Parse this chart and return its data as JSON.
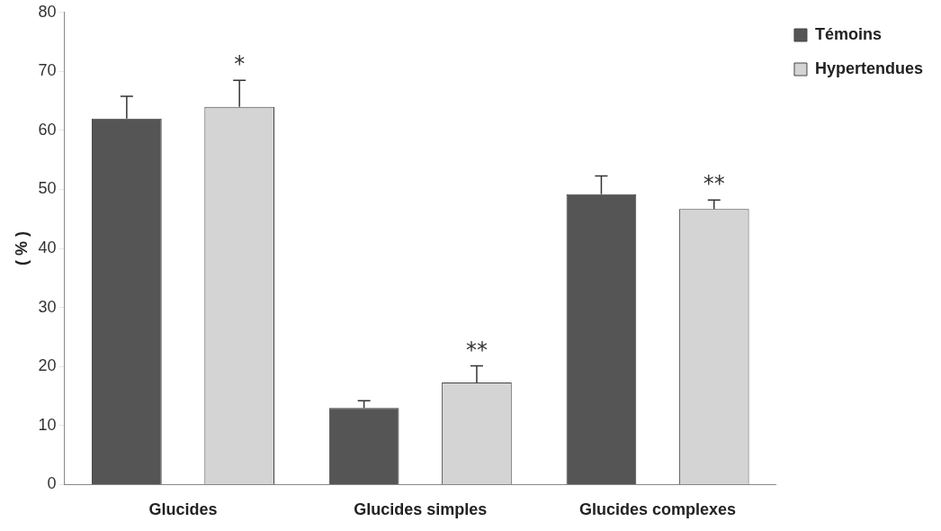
{
  "chart_data": {
    "type": "bar",
    "ylabel": "( % )",
    "categories": [
      "Glucides",
      "Glucides simples",
      "Glucides complexes"
    ],
    "series": [
      {
        "name": "Témoins",
        "color": "#555555",
        "values": [
          62,
          13,
          49.2
        ],
        "errors": [
          [
            62,
            65.8
          ],
          [
            13,
            14.2
          ],
          [
            49.2,
            52.3
          ]
        ]
      },
      {
        "name": "Hypertendues",
        "color": "#d4d4d4",
        "values": [
          64,
          17.3,
          46.7
        ],
        "errors": [
          [
            64,
            68.5
          ],
          [
            17.3,
            20.1
          ],
          [
            46.7,
            48.2
          ]
        ]
      }
    ],
    "ylim": [
      0,
      80
    ],
    "yticks": [
      0,
      10,
      20,
      30,
      40,
      50,
      60,
      70,
      80
    ],
    "grid": false,
    "legend": "top right",
    "annotations": [
      "*",
      "**",
      "**"
    ]
  }
}
